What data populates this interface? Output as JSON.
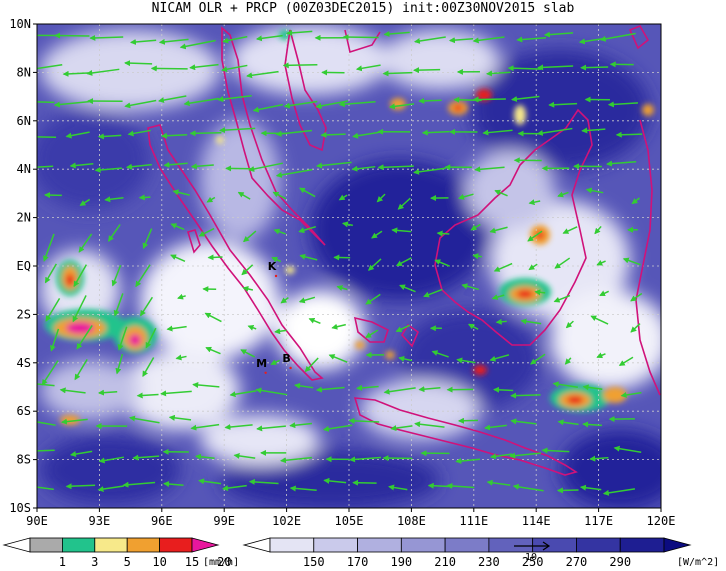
{
  "title": "NICAM OLR + PRCP (00Z03DEC2015) init:00Z30NOV2015 slab",
  "map": {
    "lon_range": [
      90,
      120
    ],
    "lat_range": [
      -10,
      10
    ],
    "lat_ticks": [
      {
        "value": 10,
        "label": "10N"
      },
      {
        "value": 8,
        "label": "8N"
      },
      {
        "value": 6,
        "label": "6N"
      },
      {
        "value": 4,
        "label": "4N"
      },
      {
        "value": 2,
        "label": "2N"
      },
      {
        "value": 0,
        "label": "EQ"
      },
      {
        "value": -2,
        "label": "2S"
      },
      {
        "value": -4,
        "label": "4S"
      },
      {
        "value": -6,
        "label": "6S"
      },
      {
        "value": -8,
        "label": "8S"
      },
      {
        "value": -10,
        "label": "10S"
      }
    ],
    "lon_ticks": [
      {
        "value": 90,
        "label": "90E"
      },
      {
        "value": 93,
        "label": "93E"
      },
      {
        "value": 96,
        "label": "96E"
      },
      {
        "value": 99,
        "label": "99E"
      },
      {
        "value": 102,
        "label": "102E"
      },
      {
        "value": 105,
        "label": "105E"
      },
      {
        "value": 108,
        "label": "108E"
      },
      {
        "value": 111,
        "label": "111E"
      },
      {
        "value": 114,
        "label": "114E"
      },
      {
        "value": 117,
        "label": "117E"
      },
      {
        "value": 120,
        "label": "120E"
      }
    ],
    "gridlines": true,
    "coastline_color": "#d0127a",
    "wind_vector_color": "#33cc33",
    "places": [
      {
        "label": "K",
        "lon": 101.3,
        "lat": 0.0
      },
      {
        "label": "M",
        "lon": 100.8,
        "lat": -4.0
      },
      {
        "label": "B",
        "lon": 102.0,
        "lat": -3.8
      }
    ]
  },
  "prcp_colorbar": {
    "labels": [
      "1",
      "3",
      "5",
      "10",
      "15",
      "20"
    ],
    "unit": "[mm/h]",
    "colors": [
      "#ffffff",
      "#aaaaaa",
      "#22c38c",
      "#f7e98a",
      "#f0a030",
      "#e81e1e",
      "#e8179d"
    ]
  },
  "olr_colorbar": {
    "labels": [
      "150",
      "170",
      "190",
      "210",
      "230",
      "250",
      "270",
      "290"
    ],
    "unit": "[W/m^2]",
    "colors": [
      "#ffffff",
      "#e4e4f4",
      "#cacaeb",
      "#b0b0e0",
      "#9696d4",
      "#7c7cc8",
      "#6262bc",
      "#4a4ab0",
      "#3434a2",
      "#1e1e92",
      "#0c0c80"
    ]
  },
  "reference_vector": {
    "label": "10"
  }
}
